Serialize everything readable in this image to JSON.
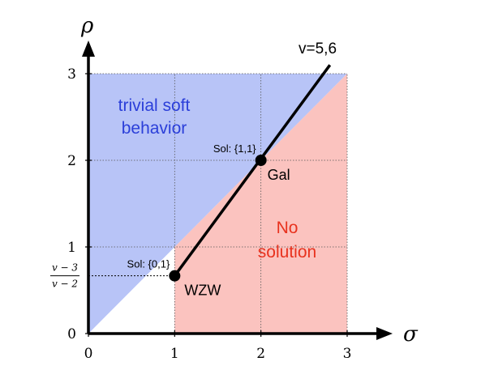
{
  "axes": {
    "x_symbol": "σ",
    "y_symbol": "ρ",
    "x_ticks": [
      "0",
      "1",
      "2",
      "3"
    ],
    "y_ticks": [
      "0",
      "1",
      "2",
      "3"
    ],
    "x_range": [
      0,
      3
    ],
    "y_range": [
      0,
      3
    ],
    "y_special_tick": {
      "value": 0.6667,
      "numerator": "v − 3",
      "denominator": "v − 2"
    }
  },
  "regions": {
    "trivial": {
      "label_line1": "trivial soft",
      "label_line2": "behavior",
      "color": "#b8c4f7",
      "label_color": "#2b3fd9"
    },
    "no_solution": {
      "label_line1": "No",
      "label_line2": "solution",
      "color": "#fbc3bf",
      "label_color": "#e8321e"
    }
  },
  "line": {
    "label": "v=5,6",
    "start": [
      1,
      0.6667
    ],
    "end": [
      2.8,
      3.1
    ]
  },
  "points": [
    {
      "name": "WZW",
      "x": 1,
      "y": 0.6667,
      "sol_label": "Sol: {0,1}"
    },
    {
      "name": "Gal",
      "x": 2,
      "y": 2,
      "sol_label": "Sol: {1,1}"
    }
  ],
  "colors": {
    "axis": "#000000",
    "grid": "#555555"
  }
}
